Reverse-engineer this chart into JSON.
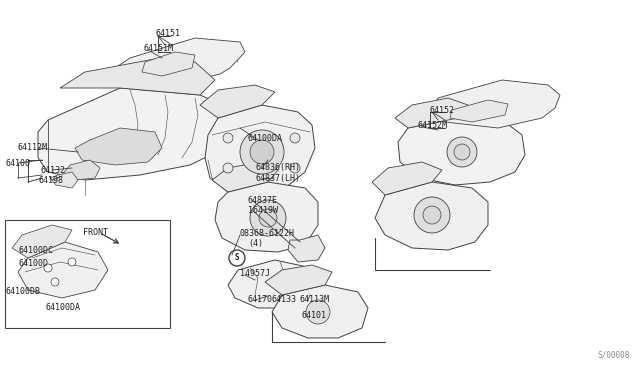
{
  "bg_color": "#ffffff",
  "line_color": "#404040",
  "text_color": "#202020",
  "doc_number": "S/00008",
  "labels": [
    [
      "64151",
      155,
      33
    ],
    [
      "64151M",
      143,
      48
    ],
    [
      "64112M",
      17,
      147
    ],
    [
      "64100",
      5,
      163
    ],
    [
      "64132",
      40,
      170
    ],
    [
      "64198",
      38,
      180
    ],
    [
      "64100DA",
      248,
      138
    ],
    [
      "64836(RH)",
      255,
      167
    ],
    [
      "64837(LH)",
      255,
      178
    ],
    [
      "64837E",
      248,
      200
    ],
    [
      "16419W",
      248,
      210
    ],
    [
      "08368-6122H",
      240,
      233
    ],
    [
      "(4)",
      248,
      243
    ],
    [
      "14957J",
      240,
      273
    ],
    [
      "64170",
      248,
      300
    ],
    [
      "64133",
      272,
      300
    ],
    [
      "64113M",
      300,
      300
    ],
    [
      "64101",
      302,
      315
    ],
    [
      "64152",
      430,
      110
    ],
    [
      "64152M",
      418,
      125
    ],
    [
      "64100DC",
      18,
      250
    ],
    [
      "64100D",
      18,
      263
    ],
    [
      "64100DB",
      5,
      292
    ],
    [
      "64100DA",
      45,
      307
    ],
    [
      "FRONT",
      83,
      232
    ]
  ]
}
